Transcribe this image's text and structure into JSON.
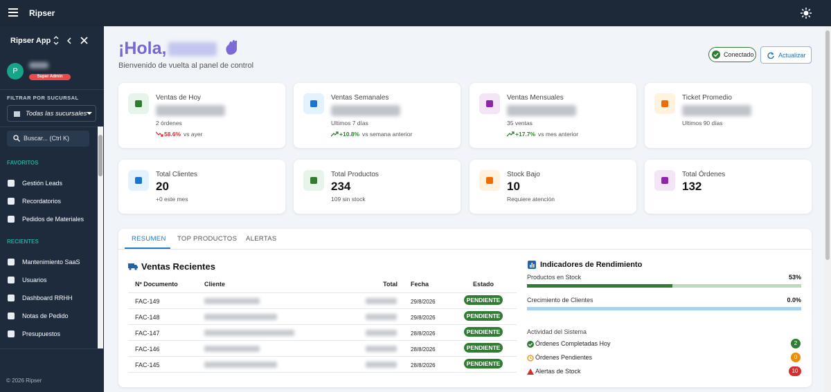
{
  "topbar": {
    "app": "Ripser"
  },
  "sidebar": {
    "app_name": "Ripser App",
    "avatar": "P",
    "role": "Super Admin",
    "filter_label": "FILTRAR POR SUCURSAL",
    "filter_value": "Todas las sucursales",
    "search": "Buscar... (Ctrl K)",
    "favorites_label": "FAVORITOS",
    "favorites": [
      "Gestión Leads",
      "Recordatorios",
      "Pedidos de Materiales"
    ],
    "recents_label": "RECIENTES",
    "recents": [
      "Mantenimiento SaaS",
      "Usuarios",
      "Dashboard RRHH",
      "Notas de Pedido",
      "Presupuestos"
    ],
    "footer": "© 2026 Ripser"
  },
  "header": {
    "greeting": "¡Hola,",
    "subtitle": "Bienvenido de vuelta al panel de control",
    "status": "Conectado",
    "refresh": "Actualizar"
  },
  "stats": [
    {
      "label": "Ventas de Hoy",
      "note": "2 órdenes",
      "change": "58.6%",
      "change_note": "vs ayer",
      "trend": "down"
    },
    {
      "label": "Ventas Semanales",
      "note": "Ultimos 7 días",
      "change": "+10.8%",
      "change_note": "vs semana anterior",
      "trend": "up"
    },
    {
      "label": "Ventas Mensuales",
      "note": "35 ventas",
      "change": "+17.7%",
      "change_note": "vs mes anterior",
      "trend": "up"
    },
    {
      "label": "Ticket Promedio",
      "note": "Ultimos 90 días"
    },
    {
      "label": "Total Clientes",
      "value": 20,
      "note": "+0 este mes"
    },
    {
      "label": "Total Productos",
      "value": 234,
      "note": "109 sin stock"
    },
    {
      "label": "Stock Bajo",
      "value": 10,
      "note": "Requiere atención"
    },
    {
      "label": "Total Órdenes",
      "value": 132
    }
  ],
  "tabs": [
    "RESUMEN",
    "TOP PRODUCTOS",
    "ALERTAS"
  ],
  "sales": {
    "title": "Ventas Recientes",
    "columns": [
      "Nº Documento",
      "Cliente",
      "Total",
      "Fecha",
      "Estado"
    ],
    "rows": [
      {
        "doc": "FAC-149",
        "date": "29/8/2026",
        "status": "PENDIENTE"
      },
      {
        "doc": "FAC-148",
        "date": "29/8/2026",
        "status": "PENDIENTE"
      },
      {
        "doc": "FAC-147",
        "date": "28/8/2026",
        "status": "PENDIENTE"
      },
      {
        "doc": "FAC-146",
        "date": "28/8/2026",
        "status": "PENDIENTE"
      },
      {
        "doc": "FAC-145",
        "date": "28/8/2026",
        "status": "PENDIENTE"
      }
    ]
  },
  "kpis": {
    "title": "Indicadores de Rendimiento",
    "bars": [
      {
        "label": "Productos en Stock",
        "value": 53,
        "value_label": "53%"
      },
      {
        "label": "Crecimiento de Clientes",
        "value": 0,
        "value_label": "0.0%"
      }
    ],
    "activity_title": "Actividad del Sistema",
    "activity": [
      {
        "label": "Órdenes Completadas Hoy",
        "count": 2
      },
      {
        "label": "Órdenes Pendientes",
        "count": 0
      },
      {
        "label": "Alertas de Stock",
        "count": 10
      }
    ]
  }
}
